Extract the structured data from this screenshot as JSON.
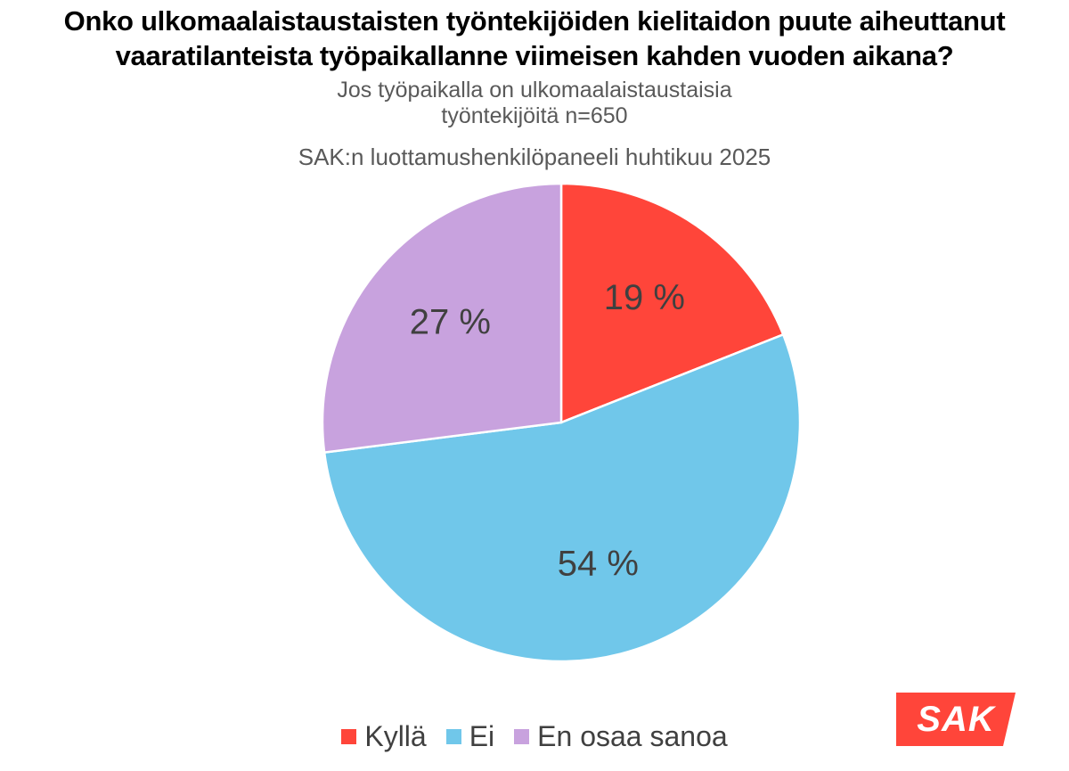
{
  "chart_data": {
    "type": "pie",
    "title_lines": [
      "Onko ulkomaalaistaustaisten työntekijöiden kielitaidon puute aiheuttanut",
      "vaaratilanteista työpaikallanne viimeisen kahden vuoden aikana?"
    ],
    "subtitle_lines": [
      "Jos työpaikalla on ulkomaalaistaustaisia",
      "työntekijöitä n=650"
    ],
    "source": "SAK:n luottamushenkilöpaneeli huhtikuu 2025",
    "slices": [
      {
        "label": "Kyllä",
        "value": 19,
        "display": "19 %",
        "color": "#ff453a"
      },
      {
        "label": "Ei",
        "value": 54,
        "display": "54 %",
        "color": "#70c7ea"
      },
      {
        "label": "En osaa sanoa",
        "value": 27,
        "display": "27 %",
        "color": "#c8a2de"
      }
    ],
    "start_angle": "12 o'clock",
    "direction": "clockwise",
    "legend_position": "bottom"
  },
  "logo": {
    "text": "SAK",
    "color": "#ff453a"
  }
}
